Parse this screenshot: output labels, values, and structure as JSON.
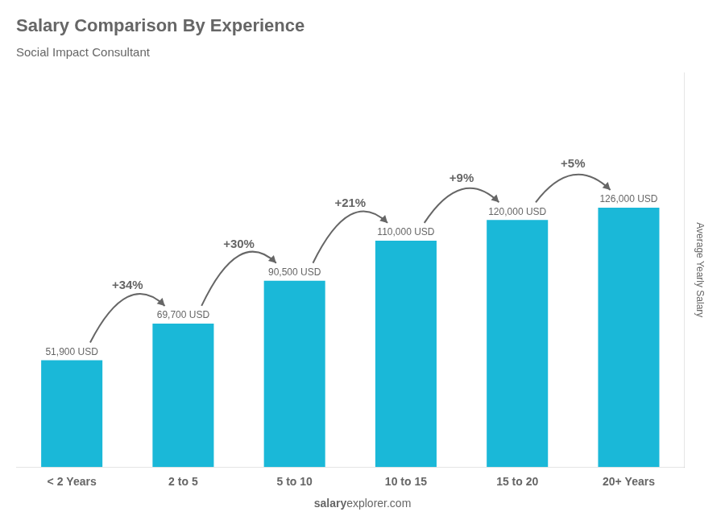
{
  "chart_data": {
    "type": "bar",
    "title": "Salary Comparison By Experience",
    "subtitle": "Social Impact Consultant",
    "categories": [
      "< 2 Years",
      "2 to 5",
      "5 to 10",
      "10 to 15",
      "15 to 20",
      "20+ Years"
    ],
    "values": [
      51900,
      69700,
      90500,
      110000,
      120000,
      126000
    ],
    "value_labels": [
      "51,900 USD",
      "69,700 USD",
      "90,500 USD",
      "110,000 USD",
      "120,000 USD",
      "126,000 USD"
    ],
    "data_labels": true,
    "annotations": [
      null,
      "+34%",
      "+30%",
      "+21%",
      "+9%",
      "+5%"
    ],
    "ylabel": "Average Yearly Salary",
    "watermark": [
      "salary",
      "explorer.com"
    ],
    "color": "#1ab8d8",
    "ylim": [
      0,
      191520
    ],
    "grid": false,
    "tick_labels": "x"
  }
}
